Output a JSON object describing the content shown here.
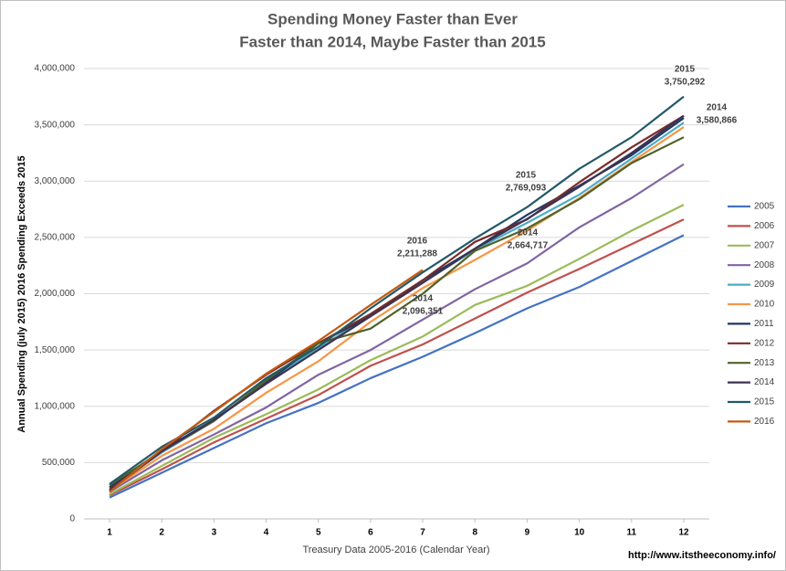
{
  "chart_data": {
    "type": "line",
    "title": "Spending Money Faster than Ever",
    "subtitle": "Faster than 2014, Maybe Faster than 2015",
    "x_label": "Treasury Data 2005-2016 (Calendar Year)",
    "y_label": "Annual Spending (july 2015) 2016 Spending Exceeds 2015",
    "source": "http://www.itstheeconomy.info/",
    "x": [
      1,
      2,
      3,
      4,
      5,
      6,
      7,
      8,
      9,
      10,
      11,
      12
    ],
    "xlim": [
      1,
      12
    ],
    "xticks": [
      1,
      2,
      3,
      4,
      5,
      6,
      7,
      8,
      9,
      10,
      11,
      12
    ],
    "ylim": [
      0,
      4000000
    ],
    "yticks": [
      0,
      {
        "value": 500000,
        "label": "500,000"
      },
      {
        "value": 1000000,
        "label": "1,000,000"
      },
      {
        "value": 1500000,
        "label": "1,500,000"
      },
      {
        "value": 2000000,
        "label": "2,000,000"
      },
      {
        "value": 2500000,
        "label": "2,500,000"
      },
      {
        "value": 3000000,
        "label": "3,000,000"
      },
      {
        "value": 3500000,
        "label": "3,500,000"
      },
      {
        "value": 4000000,
        "label": "4,000,000"
      }
    ],
    "grid": true,
    "legend": "right",
    "series": [
      {
        "name": "2005",
        "color": "#4472c4",
        "values": [
          190000,
          410000,
          630000,
          850000,
          1030000,
          1250000,
          1440000,
          1650000,
          1870000,
          2060000,
          2290000,
          2520000
        ]
      },
      {
        "name": "2006",
        "color": "#c0504d",
        "values": [
          210000,
          440000,
          680000,
          890000,
          1100000,
          1360000,
          1550000,
          1780000,
          2010000,
          2220000,
          2440000,
          2660000
        ]
      },
      {
        "name": "2007",
        "color": "#9bbb59",
        "values": [
          220000,
          470000,
          720000,
          930000,
          1150000,
          1410000,
          1620000,
          1900000,
          2070000,
          2310000,
          2560000,
          2790000
        ]
      },
      {
        "name": "2008",
        "color": "#8064a2",
        "values": [
          240000,
          520000,
          750000,
          990000,
          1280000,
          1500000,
          1770000,
          2040000,
          2270000,
          2590000,
          2850000,
          3150000
        ]
      },
      {
        "name": "2009",
        "color": "#4bacc6",
        "values": [
          270000,
          590000,
          870000,
          1220000,
          1520000,
          1800000,
          2100000,
          2390000,
          2630000,
          2880000,
          3200000,
          3520000
        ]
      },
      {
        "name": "2010",
        "color": "#f79646",
        "values": [
          250000,
          560000,
          800000,
          1120000,
          1400000,
          1750000,
          2050000,
          2300000,
          2560000,
          2850000,
          3170000,
          3480000
        ]
      },
      {
        "name": "2011",
        "color": "#1f3864",
        "values": [
          280000,
          610000,
          880000,
          1210000,
          1560000,
          1800000,
          2120000,
          2400000,
          2700000,
          2960000,
          3230000,
          3560000
        ]
      },
      {
        "name": "2012",
        "color": "#772c2a",
        "values": [
          260000,
          600000,
          960000,
          1280000,
          1560000,
          1820000,
          2120000,
          2460000,
          2660000,
          2990000,
          3300000,
          3580000
        ]
      },
      {
        "name": "2013",
        "color": "#4f6228",
        "values": [
          300000,
          600000,
          870000,
          1230000,
          1560000,
          1690000,
          2000000,
          2380000,
          2580000,
          2840000,
          3160000,
          3390000
        ]
      },
      {
        "name": "2014",
        "color": "#3f3151",
        "values": [
          250000,
          600000,
          880000,
          1200000,
          1500000,
          1800000,
          2096351,
          2400000,
          2664717,
          2950000,
          3250000,
          3580866
        ]
      },
      {
        "name": "2015",
        "color": "#215968",
        "values": [
          310000,
          640000,
          900000,
          1250000,
          1530000,
          1870000,
          2190000,
          2490000,
          2769093,
          3110000,
          3390000,
          3750292
        ]
      },
      {
        "name": "2016",
        "color": "#c55a11",
        "values": [
          240000,
          620000,
          950000,
          1290000,
          1580000,
          1900000,
          2211288,
          null,
          null,
          null,
          null,
          null
        ]
      }
    ],
    "annotations": [
      [
        "2015",
        "3,750,292"
      ],
      [
        "2014",
        "3,580,866"
      ],
      [
        "2015",
        "2,769,093"
      ],
      [
        "2014",
        "2,664,717"
      ],
      [
        "2016",
        "2,211,288"
      ],
      [
        "2014",
        "2,096,351"
      ]
    ]
  }
}
